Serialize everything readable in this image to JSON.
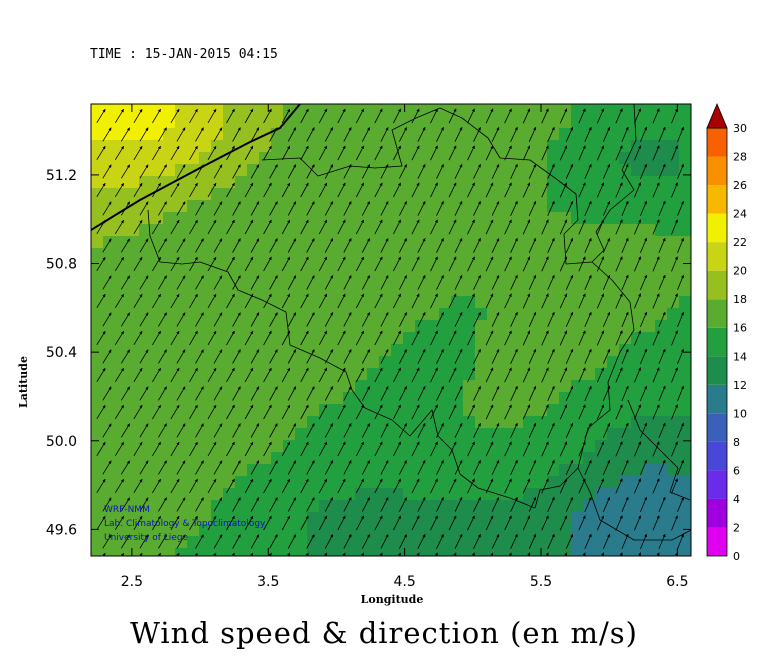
{
  "header": {
    "time_label": "TIME : 15-JAN-2015 04:15"
  },
  "footer": {
    "title": "Wind speed & direction (en m/s)"
  },
  "credits": [
    "WRF-NMM",
    "Lab. Climatology & Topoclimatology",
    "University of Liege"
  ],
  "chart_data": {
    "type": "heatmap",
    "title": "Wind speed & direction (en m/s)",
    "xlabel": "Longitude",
    "ylabel": "Latitude",
    "xlim": [
      2.2,
      6.6
    ],
    "ylim": [
      49.48,
      51.52
    ],
    "xticks": [
      "2.5",
      "3.5",
      "4.5",
      "5.5",
      "6.5"
    ],
    "xtick_values": [
      2.5,
      3.5,
      4.5,
      5.5,
      6.5
    ],
    "yticks": [
      "51.2",
      "50.8",
      "50.4",
      "50.0",
      "49.6"
    ],
    "ytick_values": [
      51.2,
      50.8,
      50.4,
      50.0,
      49.6
    ],
    "colorbar": {
      "labels": [
        "0",
        "2",
        "4",
        "6",
        "8",
        "10",
        "12",
        "14",
        "16",
        "18",
        "20",
        "22",
        "24",
        "26",
        "28",
        "30"
      ],
      "values": [
        0,
        2,
        4,
        6,
        8,
        10,
        12,
        14,
        16,
        18,
        20,
        22,
        24,
        26,
        28,
        30
      ],
      "colors": [
        "#e000f0",
        "#a000e0",
        "#6a2ce8",
        "#4848d8",
        "#3a60b8",
        "#2a7c8c",
        "#1e8c4a",
        "#22a040",
        "#5aac30",
        "#96c020",
        "#c8d414",
        "#f0f000",
        "#f8b800",
        "#f89000",
        "#f86000",
        "#f02000",
        "#d00000",
        "#a80000"
      ]
    },
    "wind_direction": "south-west to north-east",
    "series": []
  }
}
